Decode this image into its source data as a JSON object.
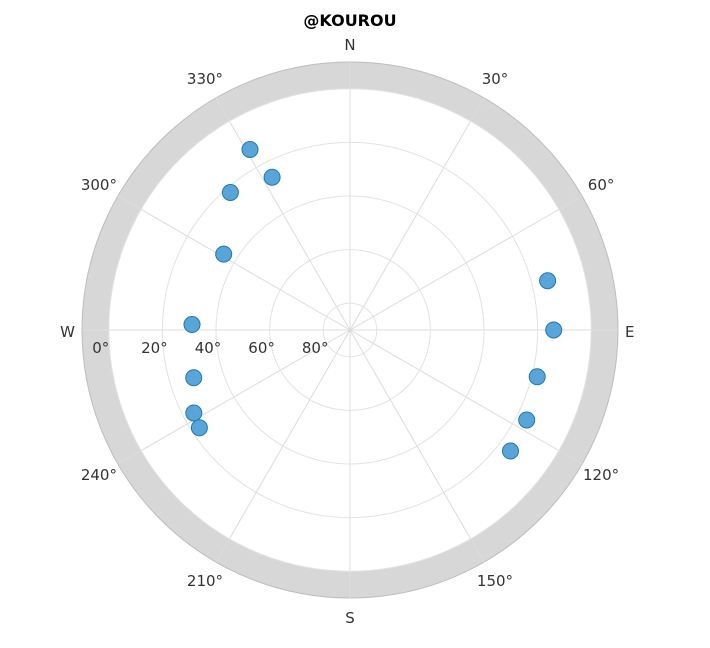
{
  "chart_data": {
    "type": "scatter",
    "projection": "polar-skyplot",
    "title": "@KOUROU",
    "cardinal_labels": {
      "N": "N",
      "E": "E",
      "S": "S",
      "W": "W"
    },
    "azimuth_tick_labels": [
      "30°",
      "60°",
      "120°",
      "150°",
      "210°",
      "240°",
      "300°",
      "330°"
    ],
    "azimuth_ticks_deg": [
      30,
      60,
      120,
      150,
      210,
      240,
      300,
      330
    ],
    "elevation_tick_labels": [
      "0°",
      "20°",
      "40°",
      "60°",
      "80°"
    ],
    "elevation_ticks_deg": [
      0,
      20,
      40,
      60,
      80
    ],
    "elevation_range": [
      -10,
      90
    ],
    "masked_band_deg": [
      -10,
      0
    ],
    "grid": true,
    "marker_color": "#5aa5d8",
    "marker_edge_color": "#1f77b4",
    "band_color": "#d7d7d7",
    "points": [
      {
        "azimuth": 331,
        "elevation": 13
      },
      {
        "azimuth": 319,
        "elevation": 22
      },
      {
        "azimuth": 301,
        "elevation": 35
      },
      {
        "azimuth": 333,
        "elevation": 26
      },
      {
        "azimuth": 272,
        "elevation": 31
      },
      {
        "azimuth": 253,
        "elevation": 29
      },
      {
        "azimuth": 242,
        "elevation": 24
      },
      {
        "azimuth": 237,
        "elevation": 23
      },
      {
        "azimuth": 76,
        "elevation": 14
      },
      {
        "azimuth": 90,
        "elevation": 14
      },
      {
        "azimuth": 104,
        "elevation": 18
      },
      {
        "azimuth": 117,
        "elevation": 16
      },
      {
        "azimuth": 127,
        "elevation": 15
      }
    ]
  }
}
